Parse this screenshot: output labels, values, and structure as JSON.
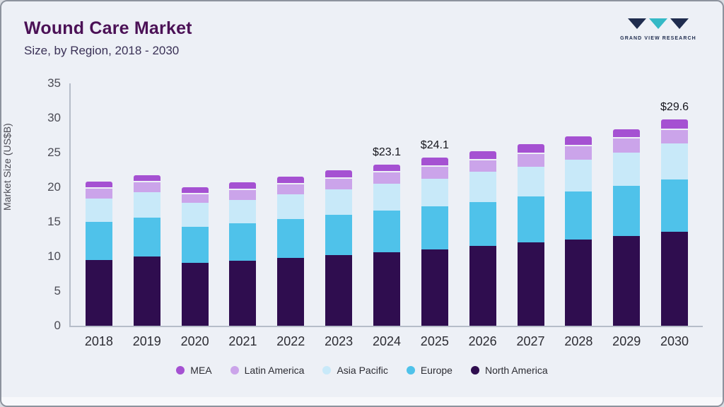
{
  "header": {
    "title": "Wound Care Market",
    "subtitle": "Size, by Region, 2018 - 2030"
  },
  "logo": {
    "text": "GRAND VIEW RESEARCH",
    "navy": "#1f2c4e",
    "teal": "#35b9c6"
  },
  "chart_data": {
    "type": "bar",
    "stacked": true,
    "title": "Wound Care Market Size, by Region, 2018 - 2030",
    "xlabel": "",
    "ylabel": "Market Size (US$B)",
    "ylim": [
      0,
      35
    ],
    "yticks": [
      0,
      5,
      10,
      15,
      20,
      25,
      30,
      35
    ],
    "grid": false,
    "legend_position": "bottom",
    "categories": [
      "2018",
      "2019",
      "2020",
      "2021",
      "2022",
      "2023",
      "2024",
      "2025",
      "2026",
      "2027",
      "2028",
      "2029",
      "2030"
    ],
    "series": [
      {
        "name": "North America",
        "color": "#2f0d4f",
        "values": [
          9.5,
          10.0,
          9.1,
          9.4,
          9.8,
          10.2,
          10.6,
          11.0,
          11.5,
          12.0,
          12.5,
          13.0,
          13.6
        ]
      },
      {
        "name": "Europe",
        "color": "#4fc2ea",
        "values": [
          5.5,
          5.6,
          5.2,
          5.4,
          5.6,
          5.8,
          6.0,
          6.2,
          6.4,
          6.7,
          6.9,
          7.2,
          7.5
        ]
      },
      {
        "name": "Asia Pacific",
        "color": "#c8e9f9",
        "values": [
          3.4,
          3.7,
          3.5,
          3.4,
          3.6,
          3.7,
          3.9,
          4.0,
          4.3,
          4.3,
          4.6,
          4.8,
          5.2
        ]
      },
      {
        "name": "Latin America",
        "color": "#cba4ea",
        "values": [
          1.4,
          1.4,
          1.2,
          1.4,
          1.4,
          1.5,
          1.6,
          1.8,
          1.7,
          1.8,
          1.9,
          2.0,
          2.0
        ]
      },
      {
        "name": "MEA",
        "color": "#a551d2",
        "values": [
          0.8,
          0.8,
          0.8,
          0.9,
          0.9,
          1.0,
          1.0,
          1.1,
          1.1,
          1.2,
          1.2,
          1.2,
          1.3
        ]
      }
    ],
    "totals": [
      20.6,
      21.5,
      19.8,
      20.5,
      21.3,
      22.2,
      23.1,
      24.1,
      25.0,
      26.0,
      27.1,
      28.2,
      29.6
    ],
    "annotations": [
      {
        "category": "2024",
        "label": "$23.1"
      },
      {
        "category": "2025",
        "label": "$24.1"
      },
      {
        "category": "2030",
        "label": "$29.6"
      }
    ],
    "legend": [
      "MEA",
      "Latin America",
      "Asia Pacific",
      "Europe",
      "North America"
    ]
  }
}
